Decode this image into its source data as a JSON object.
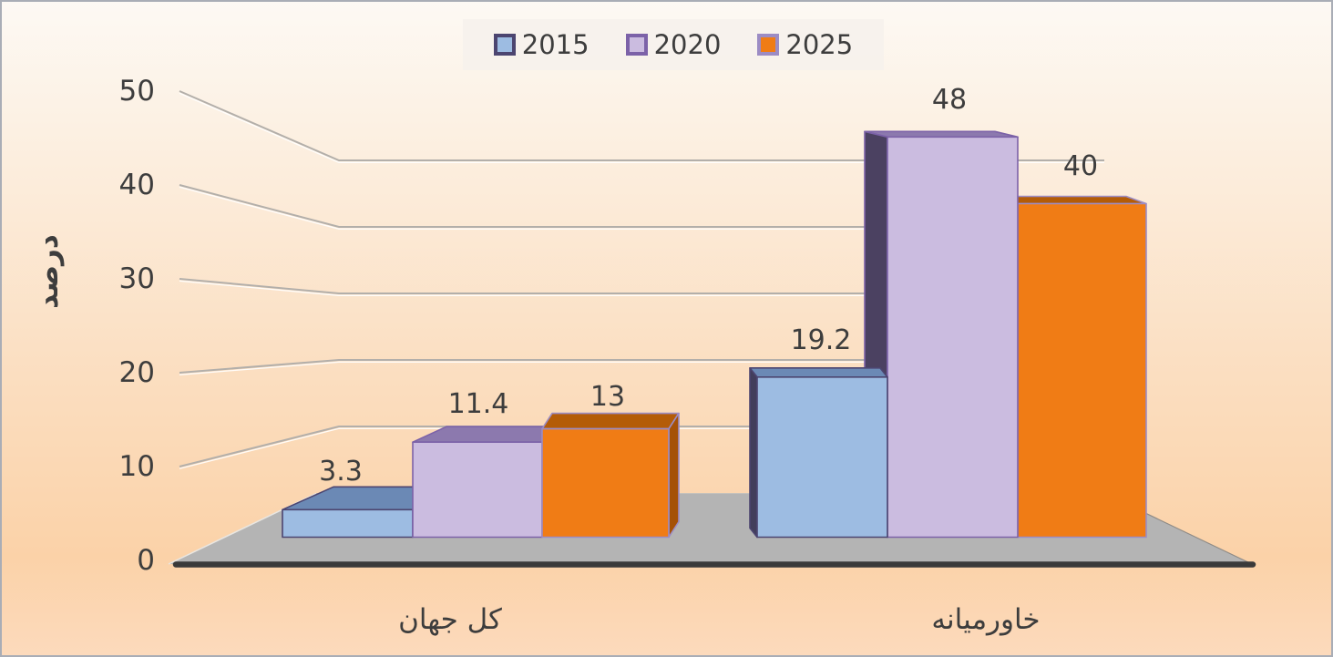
{
  "chart_data": {
    "type": "bar",
    "variant": "3d-clustered-column",
    "title": "",
    "ylabel": "درصد",
    "xlabel": "",
    "categories": [
      "کل جهان",
      "خاورمیانه"
    ],
    "series": [
      {
        "name": "2015",
        "values": [
          3.3,
          19.2
        ],
        "colors": {
          "front": "#9dbce2",
          "top": "#6b89b5",
          "side": "#423e5c",
          "border": "#4c4570"
        }
      },
      {
        "name": "2020",
        "values": [
          11.4,
          48
        ],
        "colors": {
          "front": "#cbbce0",
          "top": "#8c79ae",
          "side": "#4b4161",
          "border": "#7c62a8"
        }
      },
      {
        "name": "2025",
        "values": [
          13,
          40
        ],
        "colors": {
          "front": "#f07c15",
          "top": "#b45c07",
          "side": "#a55107",
          "border": "#9c8cc4"
        }
      }
    ],
    "yticks": [
      0,
      10,
      20,
      30,
      40,
      50
    ],
    "ylim": [
      0,
      50
    ],
    "grid": true,
    "legend_position": "top",
    "data_labels": [
      "3.3",
      "11.4",
      "13",
      "19.2",
      "48",
      "40"
    ]
  },
  "palette": {
    "background_top": "#fdf9f4",
    "background_bottom": "#fbd2a8",
    "floor": "#b4b4b4",
    "axis_line": "#3a3a3a",
    "gridline": "#b3afaa",
    "gridline_highlight": "#ffffff",
    "text": "#3d3d3d",
    "legend_background": "#f6f1ec",
    "outer_border": "#a9adb6"
  }
}
